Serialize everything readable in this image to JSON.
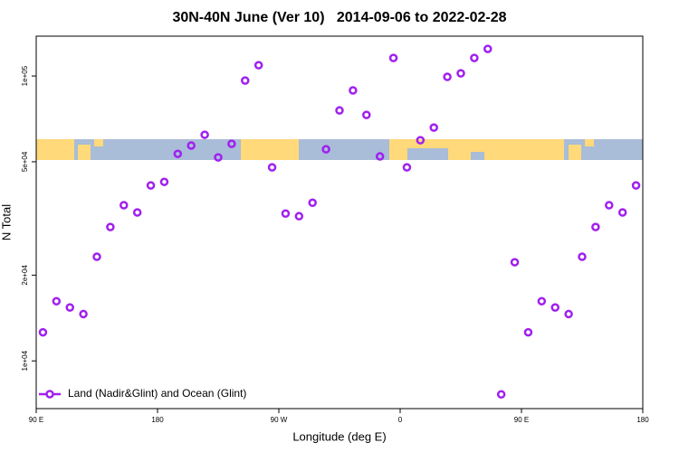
{
  "chart_data": {
    "type": "scatter",
    "title": "30N-40N June (Ver 10)   2014-09-06 to 2022-02-28",
    "xlabel": "Longitude (deg E)",
    "ylabel": "N Total",
    "log_y": true,
    "legend": "bottom-left",
    "xlim": [
      90,
      540
    ],
    "xticks": [
      {
        "value": 90,
        "label": "90 E"
      },
      {
        "value": 180,
        "label": "180"
      },
      {
        "value": 270,
        "label": "90 W"
      },
      {
        "value": 360,
        "label": "0"
      },
      {
        "value": 450,
        "label": "90 E"
      },
      {
        "value": 540,
        "label": "180"
      }
    ],
    "ylim": [
      6800,
      138000
    ],
    "yticks": [
      {
        "value": 10000,
        "label": "1e+04"
      },
      {
        "value": 20000,
        "label": "2e+04"
      },
      {
        "value": 50000,
        "label": "5e+04"
      },
      {
        "value": 100000,
        "label": "1e+05"
      }
    ],
    "x": [
      95,
      105,
      115,
      125,
      135,
      145,
      155,
      165,
      175,
      185,
      195,
      205,
      215,
      225,
      235,
      245,
      255,
      265,
      275,
      285,
      295,
      305,
      315,
      325,
      335,
      345,
      355,
      365,
      375,
      385,
      395,
      405,
      415,
      425,
      435,
      445,
      455,
      465,
      475,
      485,
      495,
      505,
      515,
      525,
      535
    ],
    "series": [
      {
        "name": "Land (Nadir&Glint) and Ocean (Glint)",
        "color": "#a020f0",
        "values": [
          12600,
          16200,
          15400,
          14600,
          23200,
          29500,
          35200,
          33200,
          41300,
          42500,
          53300,
          57000,
          62200,
          51800,
          57800,
          96400,
          109100,
          47800,
          32900,
          32200,
          35900,
          55300,
          75700,
          89000,
          73000,
          52200,
          115700,
          47800,
          59500,
          65900,
          99300,
          102200,
          115700,
          124500,
          7630,
          22200,
          12600,
          16200,
          15400,
          14600,
          23200,
          29500,
          35200,
          33200,
          41300
        ]
      }
    ]
  }
}
